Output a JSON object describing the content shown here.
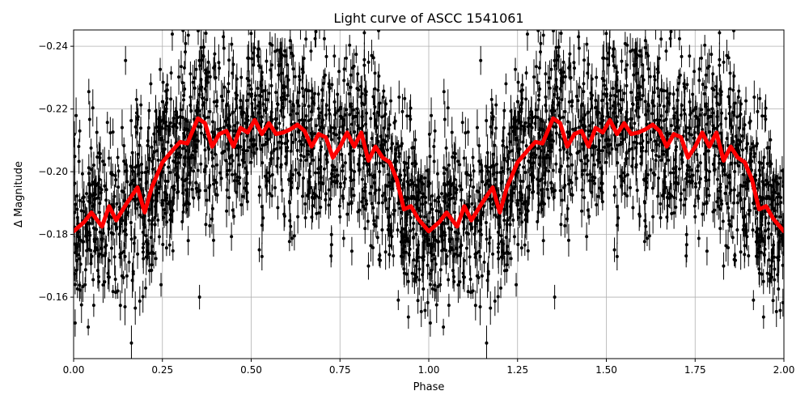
{
  "chart_data": {
    "type": "scatter",
    "title": "Light curve of ASCC 1541061",
    "xlabel": "Phase",
    "ylabel": "Δ Magnitude",
    "xlim": [
      0.0,
      2.0
    ],
    "ylim": [
      -0.2452,
      -0.1404
    ],
    "y_inverted": true,
    "grid": true,
    "xticks": [
      "0.00",
      "0.25",
      "0.50",
      "0.75",
      "1.00",
      "1.25",
      "1.50",
      "1.75",
      "2.00"
    ],
    "yticks": [
      "−0.24",
      "−0.22",
      "−0.20",
      "−0.18",
      "−0.16"
    ],
    "colors": {
      "points": "#000000",
      "model": "#ff0000",
      "grid": "#b0b0b0"
    },
    "points": {
      "description_style": "black dots with vertical error bars, phase-folded and repeated over 0–2",
      "scatter_sd": 0.014
    },
    "model": {
      "name": "",
      "phase": [
        0.0,
        0.03,
        0.05,
        0.08,
        0.1,
        0.12,
        0.15,
        0.18,
        0.2,
        0.22,
        0.25,
        0.28,
        0.3,
        0.32,
        0.35,
        0.37,
        0.39,
        0.41,
        0.43,
        0.45,
        0.47,
        0.49,
        0.51,
        0.53,
        0.55,
        0.57,
        0.59,
        0.61,
        0.63,
        0.65,
        0.67,
        0.69,
        0.71,
        0.73,
        0.75,
        0.77,
        0.79,
        0.81,
        0.83,
        0.85,
        0.87,
        0.89,
        0.91,
        0.93,
        0.95,
        0.97,
        1.0
      ],
      "mag": [
        -0.181,
        -0.184,
        -0.187,
        -0.1825,
        -0.189,
        -0.1845,
        -0.19,
        -0.195,
        -0.187,
        -0.195,
        -0.203,
        -0.207,
        -0.2095,
        -0.209,
        -0.217,
        -0.2155,
        -0.208,
        -0.212,
        -0.213,
        -0.208,
        -0.214,
        -0.2125,
        -0.2165,
        -0.212,
        -0.2155,
        -0.212,
        -0.2125,
        -0.2135,
        -0.215,
        -0.213,
        -0.208,
        -0.212,
        -0.211,
        -0.2045,
        -0.208,
        -0.2125,
        -0.208,
        -0.2125,
        -0.2035,
        -0.208,
        -0.2045,
        -0.203,
        -0.1975,
        -0.188,
        -0.189,
        -0.185,
        -0.181
      ]
    }
  }
}
